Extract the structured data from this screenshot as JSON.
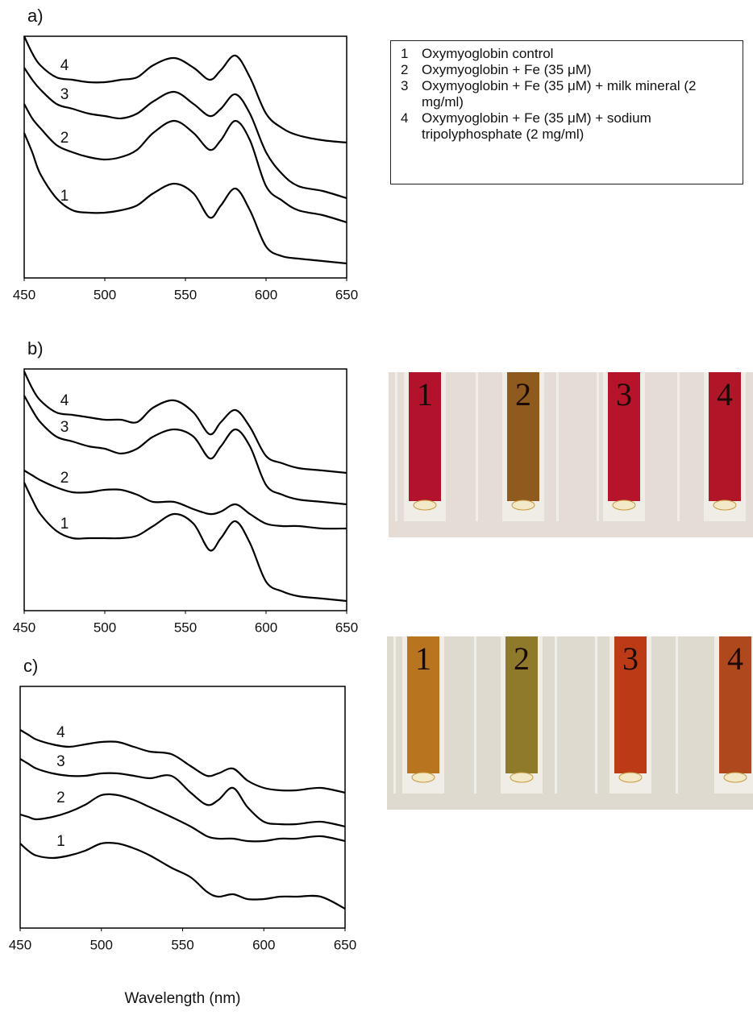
{
  "chart_data": [
    {
      "type": "line",
      "label": "a)",
      "x": [
        450,
        455,
        460,
        470,
        480,
        490,
        500,
        510,
        520,
        530,
        543,
        555,
        565,
        572,
        581,
        590,
        600,
        610,
        620,
        635,
        650
      ],
      "xlim": [
        450,
        650
      ],
      "xticks": [
        450,
        500,
        550,
        600,
        650
      ],
      "ylim": [
        0,
        100
      ],
      "series": [
        {
          "name": "Oxymyoglobin control",
          "label": "1",
          "color": "#000000",
          "values": [
            60,
            52,
            43,
            33,
            28,
            27,
            27,
            28,
            30,
            35,
            39,
            35,
            25,
            30,
            37,
            28,
            13,
            9,
            8,
            7,
            6
          ]
        },
        {
          "name": "Oxymyoglobin + Fe (35 μM)",
          "label": "2",
          "color": "#000000",
          "values": [
            72,
            66,
            62,
            55,
            52,
            50,
            49,
            50,
            53,
            60,
            65,
            60,
            53,
            57,
            65,
            57,
            38,
            32,
            28,
            26,
            23
          ]
        },
        {
          "name": "Oxymyoglobin + Fe (35 μM) + milk mineral (2 mg/ml)",
          "label": "3",
          "color": "#000000",
          "values": [
            87,
            82,
            78,
            72,
            70,
            68,
            67,
            66,
            68,
            73,
            77,
            72,
            67,
            70,
            76,
            68,
            52,
            43,
            38,
            36,
            33
          ]
        },
        {
          "name": "Oxymyoglobin + Fe (35 μM) + sodium tripolyphosphate (2 mg/ml)",
          "label": "4",
          "color": "#000000",
          "values": [
            100,
            93,
            88,
            83,
            82,
            81,
            81,
            82,
            83,
            88,
            91,
            87,
            82,
            86,
            92,
            83,
            68,
            62,
            59,
            57,
            56
          ]
        }
      ]
    },
    {
      "type": "line",
      "label": "b)",
      "x": [
        450,
        455,
        460,
        470,
        480,
        490,
        500,
        510,
        520,
        530,
        543,
        555,
        565,
        572,
        581,
        590,
        600,
        610,
        620,
        635,
        650
      ],
      "xlim": [
        450,
        650
      ],
      "xticks": [
        450,
        500,
        550,
        600,
        650
      ],
      "ylim": [
        0,
        100
      ],
      "series": [
        {
          "label": "1",
          "color": "#000000",
          "values": [
            53,
            46,
            40,
            33,
            30,
            30,
            30,
            30,
            31,
            35,
            40,
            36,
            25,
            30,
            37,
            28,
            12,
            8,
            6,
            5,
            4
          ]
        },
        {
          "label": "2",
          "color": "#000000",
          "values": [
            58,
            56,
            54,
            51,
            49,
            49,
            50,
            50,
            48,
            45,
            45,
            42,
            40,
            41,
            44,
            40,
            36,
            35,
            35,
            34,
            34
          ]
        },
        {
          "label": "3",
          "color": "#000000",
          "values": [
            89,
            83,
            78,
            72,
            70,
            68,
            67,
            65,
            67,
            72,
            75,
            72,
            63,
            68,
            75,
            68,
            52,
            48,
            46,
            45,
            44
          ]
        },
        {
          "label": "4",
          "color": "#000000",
          "values": [
            99,
            92,
            87,
            82,
            81,
            80,
            79,
            79,
            78,
            84,
            87,
            82,
            73,
            78,
            83,
            76,
            64,
            61,
            59,
            58,
            57
          ]
        }
      ]
    },
    {
      "type": "line",
      "label": "c)",
      "x_label": "Wavelength (nm)",
      "x": [
        450,
        455,
        460,
        470,
        480,
        490,
        500,
        510,
        520,
        530,
        543,
        555,
        565,
        572,
        581,
        590,
        600,
        610,
        620,
        635,
        650
      ],
      "xlim": [
        450,
        650
      ],
      "xticks": [
        450,
        500,
        550,
        600,
        650
      ],
      "ylim": [
        0,
        100
      ],
      "series": [
        {
          "label": "1",
          "color": "#000000",
          "values": [
            35,
            32,
            30,
            29,
            30,
            32,
            35,
            35,
            33,
            30,
            25,
            21,
            15,
            13,
            14,
            12,
            12,
            13,
            13,
            13,
            8
          ]
        },
        {
          "label": "2",
          "color": "#000000",
          "values": [
            47,
            46,
            45,
            46,
            48,
            51,
            55,
            55,
            53,
            50,
            46,
            42,
            38,
            37,
            37,
            36,
            36,
            37,
            37,
            38,
            36
          ]
        },
        {
          "label": "3",
          "color": "#000000",
          "values": [
            70,
            68,
            66,
            64,
            63,
            63,
            64,
            64,
            63,
            62,
            63,
            56,
            51,
            53,
            58,
            50,
            44,
            43,
            43,
            44,
            42
          ]
        },
        {
          "label": "4",
          "color": "#000000",
          "values": [
            82,
            80,
            78,
            76,
            75,
            76,
            77,
            77,
            75,
            73,
            72,
            67,
            63,
            64,
            66,
            61,
            58,
            57,
            57,
            58,
            56
          ]
        }
      ]
    }
  ],
  "photos": [
    {
      "tubes": [
        {
          "label": "1",
          "color": "#b3122c"
        },
        {
          "label": "2",
          "color": "#8e5a1e"
        },
        {
          "label": "3",
          "color": "#b5142a"
        },
        {
          "label": "4",
          "color": "#b01628"
        }
      ]
    },
    {
      "tubes": [
        {
          "label": "1",
          "color": "#b8741e"
        },
        {
          "label": "2",
          "color": "#8f7a2c"
        },
        {
          "label": "3",
          "color": "#bd3a16"
        },
        {
          "label": "4",
          "color": "#b0481e"
        }
      ]
    }
  ]
}
